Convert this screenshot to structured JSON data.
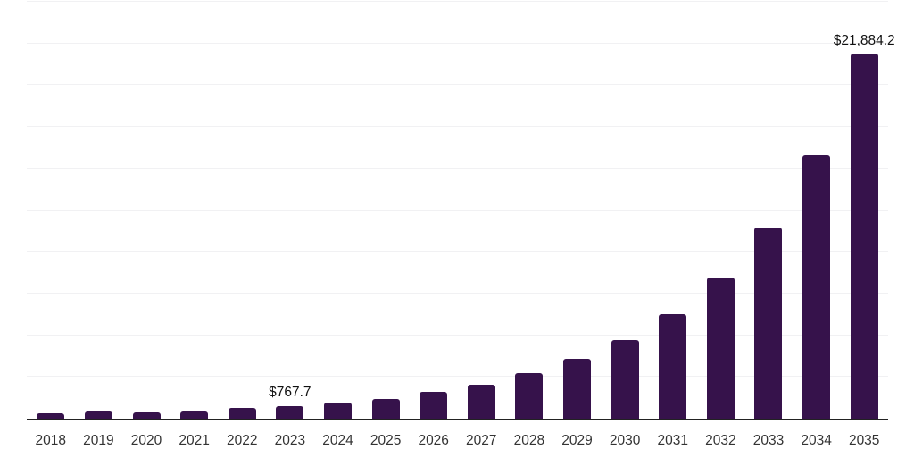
{
  "chart_data": {
    "type": "bar",
    "title": "",
    "xlabel": "",
    "ylabel": "",
    "categories": [
      "2018",
      "2019",
      "2020",
      "2021",
      "2022",
      "2023",
      "2024",
      "2025",
      "2026",
      "2027",
      "2028",
      "2029",
      "2030",
      "2031",
      "2032",
      "2033",
      "2034",
      "2035"
    ],
    "values": [
      335.9,
      442.7,
      389.2,
      426.8,
      623.5,
      767.7,
      975.8,
      1194.6,
      1618.4,
      2042.9,
      2719.7,
      3610.3,
      4708.6,
      6255.7,
      8441.9,
      11440.5,
      15770.9,
      21884.2
    ],
    "point_labels": [
      "",
      "",
      "",
      "",
      "",
      "$767.7",
      "",
      "",
      "",
      "",
      "",
      "",
      "",
      "",
      "",
      "",
      "",
      "$21,884.2"
    ],
    "ylim": [
      0,
      25000
    ],
    "grid_step": 2500,
    "grid": true,
    "legend": "none",
    "y_axis_labels_visible": false,
    "bar_color": "#36124b",
    "axis_color": "#222222",
    "gridline_color": "#f1f1f3",
    "x_label_color": "#333333",
    "value_label_color": "#111111"
  }
}
